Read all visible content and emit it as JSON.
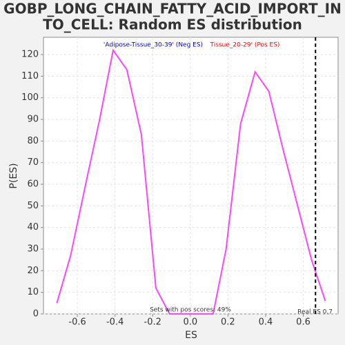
{
  "chart_data": {
    "type": "line",
    "title_lines": [
      "GOBP_LONG_CHAIN_FATTY_ACID_IMPORT_IN",
      "TO_CELL: Random ES distribution"
    ],
    "xlabel": "ES",
    "ylabel": "P(ES)",
    "legend": [
      {
        "text": "'Adipose-Tissue_30-39' (Neg ES)",
        "color": "#0000cc"
      },
      {
        "text": "Tissue_20-29' (Pos ES)",
        "color": "#ff0000"
      }
    ],
    "annotations": {
      "pos_scores": "Sets with pos scores: 49%",
      "real_es": "Real ES 0.7"
    },
    "real_es_line": 0.665,
    "x": [
      -0.709,
      -0.636,
      -0.556,
      -0.484,
      -0.41,
      -0.337,
      -0.26,
      -0.183,
      -0.11,
      -0.033,
      0.044,
      0.121,
      0.19,
      0.267,
      0.344,
      0.417,
      0.49,
      0.567,
      0.644,
      0.717
    ],
    "series": [
      {
        "name": "ES distribution",
        "color": "#ff44ff",
        "values": [
          5,
          27,
          60,
          89,
          122,
          113,
          83,
          12,
          0,
          0,
          0,
          0,
          30,
          88,
          112,
          103,
          77,
          51,
          25,
          6
        ]
      }
    ],
    "xlim": [
      -0.78,
      0.785
    ],
    "ylim": [
      0,
      128
    ],
    "xticks": [
      -0.6,
      -0.4,
      -0.2,
      {
        "value": 0,
        "label": "0.0"
      },
      0.2,
      0.4,
      0.6
    ],
    "yticks": [
      0,
      10,
      20,
      30,
      40,
      50,
      60,
      70,
      80,
      90,
      100,
      110,
      120
    ],
    "grid": true
  }
}
